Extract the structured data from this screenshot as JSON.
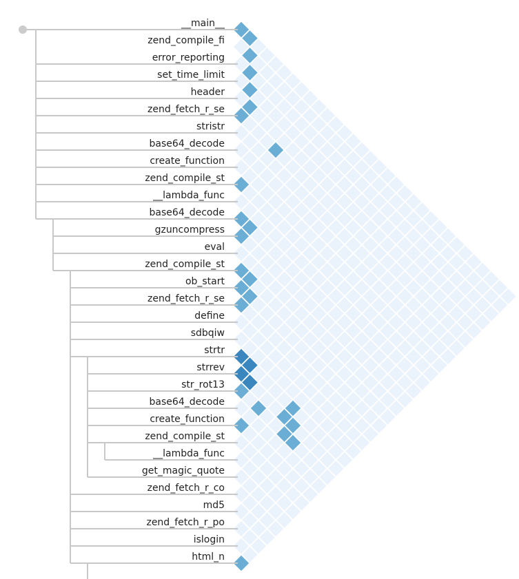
{
  "chart_data": {
    "type": "heatmap",
    "layout": "triangular-adjacency-matrix-with-tree",
    "colors": {
      "cell_empty": "#eaf3fb",
      "cell_light": "#6aaed6",
      "cell_dark": "#3a87c0",
      "tree_line": "#c8c8c8",
      "root_dot": "#cccccc",
      "label": "#222222"
    },
    "rows": [
      {
        "label": "__main__",
        "depth": 0
      },
      {
        "label": "zend_compile_fi",
        "depth": 1
      },
      {
        "label": "error_reporting",
        "depth": 1
      },
      {
        "label": "set_time_limit",
        "depth": 1
      },
      {
        "label": "header",
        "depth": 1
      },
      {
        "label": "zend_fetch_r_se",
        "depth": 1
      },
      {
        "label": "stristr",
        "depth": 1
      },
      {
        "label": "base64_decode",
        "depth": 1
      },
      {
        "label": "create_function",
        "depth": 1
      },
      {
        "label": "zend_compile_st",
        "depth": 1
      },
      {
        "label": "__lambda_func",
        "depth": 1
      },
      {
        "label": "base64_decode",
        "depth": 2
      },
      {
        "label": "gzuncompress",
        "depth": 2
      },
      {
        "label": "eval",
        "depth": 2
      },
      {
        "label": "zend_compile_st",
        "depth": 3
      },
      {
        "label": "ob_start",
        "depth": 3
      },
      {
        "label": "zend_fetch_r_se",
        "depth": 3
      },
      {
        "label": "define",
        "depth": 3
      },
      {
        "label": "sdbqiw",
        "depth": 3
      },
      {
        "label": "strtr",
        "depth": 4
      },
      {
        "label": "strrev",
        "depth": 4
      },
      {
        "label": "str_rot13",
        "depth": 4
      },
      {
        "label": "base64_decode",
        "depth": 4
      },
      {
        "label": "create_function",
        "depth": 4
      },
      {
        "label": "zend_compile_st",
        "depth": 5
      },
      {
        "label": "__lambda_func",
        "depth": 4
      },
      {
        "label": "get_magic_quote",
        "depth": 3
      },
      {
        "label": "zend_fetch_r_co",
        "depth": 3
      },
      {
        "label": "md5",
        "depth": 3
      },
      {
        "label": "zend_fetch_r_po",
        "depth": 3
      },
      {
        "label": "islogin",
        "depth": 3
      },
      {
        "label": "html_n",
        "depth": 4
      }
    ],
    "highlighted_cells": [
      {
        "i": 0,
        "j": 0,
        "level": 1
      },
      {
        "i": 0,
        "j": 1,
        "level": 1
      },
      {
        "i": 1,
        "j": 2,
        "level": 1
      },
      {
        "i": 2,
        "j": 3,
        "level": 1
      },
      {
        "i": 3,
        "j": 4,
        "level": 1
      },
      {
        "i": 4,
        "j": 5,
        "level": 1
      },
      {
        "i": 5,
        "j": 5,
        "level": 1
      },
      {
        "i": 5,
        "j": 9,
        "level": 1
      },
      {
        "i": 9,
        "j": 9,
        "level": 1
      },
      {
        "i": 11,
        "j": 11,
        "level": 1
      },
      {
        "i": 11,
        "j": 12,
        "level": 1
      },
      {
        "i": 12,
        "j": 12,
        "level": 1
      },
      {
        "i": 14,
        "j": 14,
        "level": 1
      },
      {
        "i": 14,
        "j": 15,
        "level": 1
      },
      {
        "i": 15,
        "j": 15,
        "level": 1
      },
      {
        "i": 15,
        "j": 16,
        "level": 1
      },
      {
        "i": 16,
        "j": 16,
        "level": 1
      },
      {
        "i": 19,
        "j": 19,
        "level": 2
      },
      {
        "i": 19,
        "j": 20,
        "level": 2
      },
      {
        "i": 20,
        "j": 20,
        "level": 2
      },
      {
        "i": 20,
        "j": 21,
        "level": 2
      },
      {
        "i": 21,
        "j": 21,
        "level": 1
      },
      {
        "i": 21,
        "j": 23,
        "level": 1
      },
      {
        "i": 19,
        "j": 25,
        "level": 1
      },
      {
        "i": 20,
        "j": 25,
        "level": 1
      },
      {
        "i": 20,
        "j": 26,
        "level": 1
      },
      {
        "i": 21,
        "j": 26,
        "level": 1
      },
      {
        "i": 21,
        "j": 27,
        "level": 1
      },
      {
        "i": 23,
        "j": 23,
        "level": 1
      },
      {
        "i": 31,
        "j": 31,
        "level": 1
      }
    ]
  }
}
